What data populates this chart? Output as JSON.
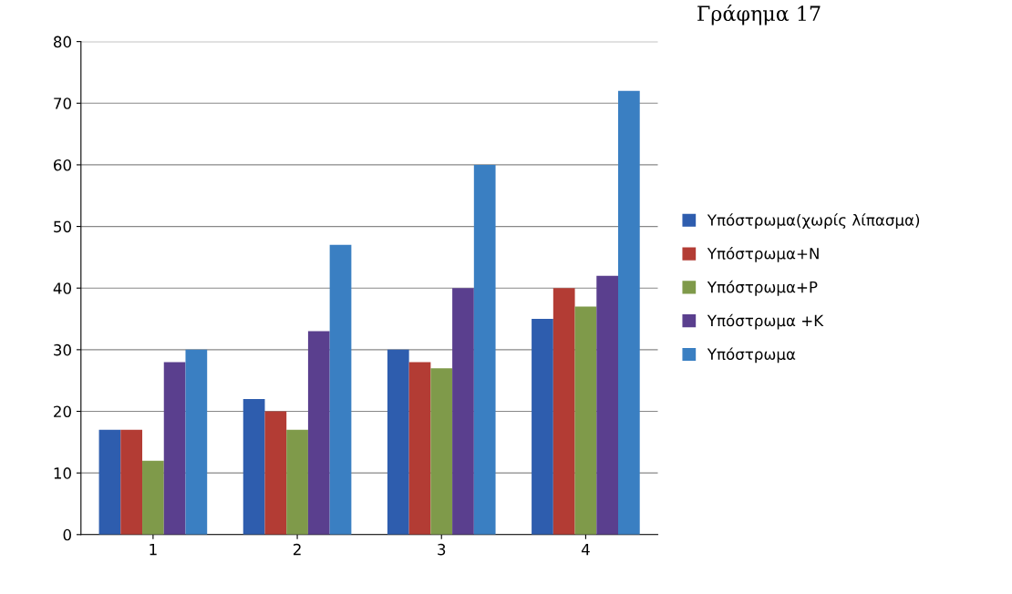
{
  "chart_data": {
    "type": "bar",
    "title": "Γράφημα 17",
    "categories": [
      "1",
      "2",
      "3",
      "4"
    ],
    "series": [
      {
        "name": "Υπόστρωμα(χωρίς λίπασμα)",
        "color": "#2e5dae",
        "values": [
          17,
          22,
          30,
          35
        ]
      },
      {
        "name": "Υπόστρωμα+N",
        "color": "#b33c34",
        "values": [
          17,
          20,
          28,
          40
        ]
      },
      {
        "name": "Υπόστρωμα+P",
        "color": "#7f9a4a",
        "values": [
          12,
          17,
          27,
          37
        ]
      },
      {
        "name": "Υπόστρωμα +K",
        "color": "#5a3f8e",
        "values": [
          28,
          33,
          40,
          42
        ]
      },
      {
        "name": "Υπόστρωμα",
        "color": "#3a7fc2",
        "values": [
          30,
          47,
          60,
          72
        ]
      }
    ],
    "ylim": [
      0,
      80
    ],
    "yticks": [
      0,
      10,
      20,
      30,
      40,
      50,
      60,
      70,
      80
    ],
    "grid": "y",
    "legend": "right"
  }
}
